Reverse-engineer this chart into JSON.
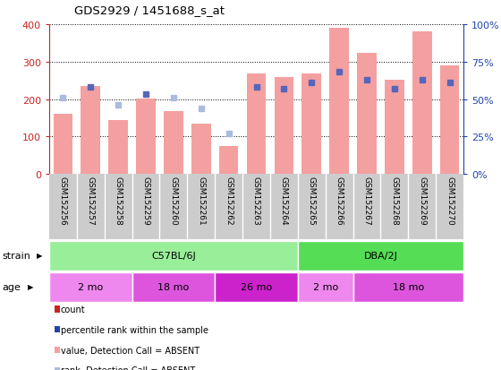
{
  "title": "GDS2929 / 1451688_s_at",
  "samples": [
    "GSM152256",
    "GSM152257",
    "GSM152258",
    "GSM152259",
    "GSM152260",
    "GSM152261",
    "GSM152262",
    "GSM152263",
    "GSM152264",
    "GSM152265",
    "GSM152266",
    "GSM152267",
    "GSM152268",
    "GSM152269",
    "GSM152270"
  ],
  "count_values": [
    160,
    235,
    143,
    202,
    168,
    133,
    75,
    268,
    258,
    268,
    390,
    324,
    252,
    382,
    290
  ],
  "rank_values": [
    51,
    58,
    46,
    53,
    51,
    44,
    27,
    58,
    57,
    61,
    68,
    63,
    57,
    63,
    61
  ],
  "absent_flags": [
    true,
    true,
    true,
    true,
    true,
    true,
    true,
    false,
    false,
    false,
    false,
    false,
    false,
    false,
    false
  ],
  "rank_absent_flags": [
    true,
    false,
    true,
    false,
    true,
    true,
    true,
    false,
    false,
    false,
    false,
    false,
    false,
    false,
    false
  ],
  "ylim_left": [
    0,
    400
  ],
  "ylim_right": [
    0,
    100
  ],
  "yticks_left": [
    0,
    100,
    200,
    300,
    400
  ],
  "yticks_right": [
    0,
    25,
    50,
    75,
    100
  ],
  "ytick_labels_right": [
    "0%",
    "25%",
    "50%",
    "75%",
    "100%"
  ],
  "color_bar": "#f4a0a0",
  "color_rank_present": "#5566bb",
  "color_rank_absent": "#aabbdd",
  "strain_groups": [
    {
      "label": "C57BL/6J",
      "start": 0,
      "end": 9,
      "color": "#99ee99"
    },
    {
      "label": "DBA/2J",
      "start": 9,
      "end": 15,
      "color": "#55dd55"
    }
  ],
  "age_groups": [
    {
      "label": "2 mo",
      "start": 0,
      "end": 3,
      "color": "#ee88ee"
    },
    {
      "label": "18 mo",
      "start": 3,
      "end": 6,
      "color": "#dd55dd"
    },
    {
      "label": "26 mo",
      "start": 6,
      "end": 9,
      "color": "#cc22cc"
    },
    {
      "label": "2 mo",
      "start": 9,
      "end": 11,
      "color": "#ee88ee"
    },
    {
      "label": "18 mo",
      "start": 11,
      "end": 15,
      "color": "#dd55dd"
    }
  ],
  "legend_colors": [
    "#cc2222",
    "#2244aa",
    "#f4a0a0",
    "#aabbdd"
  ],
  "legend_labels": [
    "count",
    "percentile rank within the sample",
    "value, Detection Call = ABSENT",
    "rank, Detection Call = ABSENT"
  ],
  "left_axis_color": "#cc2222",
  "right_axis_color": "#2244aa",
  "sample_label_bg": "#cccccc",
  "sample_label_sep_color": "#bbbbbb"
}
